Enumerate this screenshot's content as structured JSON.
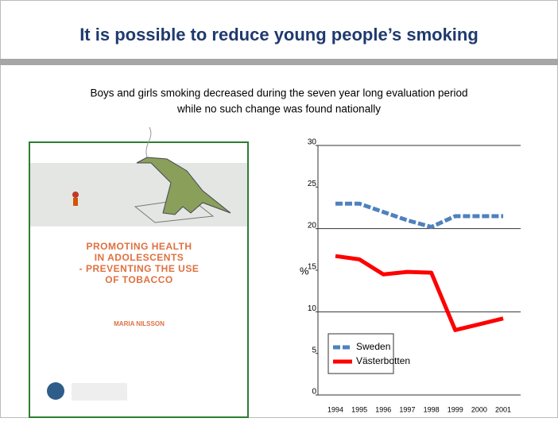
{
  "slide": {
    "title": "It is possible to reduce young people’s smoking",
    "subtitle": [
      "Boys and girls smoking decreased during the seven year long evaluation period",
      "while no such change was found nationally"
    ]
  },
  "cover": {
    "title": [
      "PROMOTING HEALTH",
      "IN ADOLESCENTS",
      "- PREVENTING THE USE",
      "OF TOBACCO"
    ],
    "author": "MARIA NILSSON"
  },
  "chart_data": {
    "type": "line",
    "y_label": "%",
    "categories": [
      "1994",
      "1995",
      "1996",
      "1997",
      "1998",
      "1999",
      "2000",
      "2001"
    ],
    "series": [
      {
        "name": "Sweden",
        "color": "#4f81bd",
        "dashed": true,
        "values": [
          23,
          23,
          22,
          21,
          20.2,
          21.5,
          21.5,
          21.5
        ]
      },
      {
        "name": "Västerbotten",
        "color": "#ff0000",
        "dashed": false,
        "values": [
          16.7,
          16.3,
          14.5,
          14.8,
          14.7,
          7.8,
          8.5,
          9.2
        ]
      }
    ],
    "ylim": [
      0,
      30
    ],
    "yticks": [
      0,
      5,
      10,
      15,
      20,
      25,
      30
    ],
    "grid_lines": [
      0,
      10,
      20,
      30
    ]
  }
}
